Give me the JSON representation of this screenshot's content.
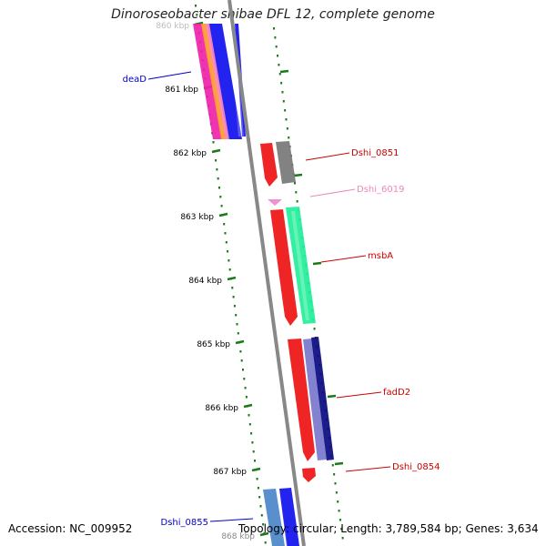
{
  "title": "Dinoroseobacter shibae DFL 12, complete genome",
  "accession": "Accession: NC_009952",
  "topology": "Topology: circular; Length: 3,789,584 bp; Genes: 3,634",
  "ticks": [
    {
      "label": "860 kbp",
      "color": "#bbbbbb"
    },
    {
      "label": "861 kbp",
      "color": "#000000"
    },
    {
      "label": "862 kbp",
      "color": "#000000"
    },
    {
      "label": "863 kbp",
      "color": "#000000"
    },
    {
      "label": "864 kbp",
      "color": "#000000"
    },
    {
      "label": "865 kbp",
      "color": "#000000"
    },
    {
      "label": "866 kbp",
      "color": "#000000"
    },
    {
      "label": "867 kbp",
      "color": "#000000"
    },
    {
      "label": "868 kbp",
      "color": "#888888"
    }
  ],
  "gene_labels": [
    {
      "name": "deaD",
      "color": "#0000cc"
    },
    {
      "name": "Dshi_0851",
      "color": "#cc0000"
    },
    {
      "name": "Dshi_6019",
      "color": "#ee88bb"
    },
    {
      "name": "msbA",
      "color": "#cc0000"
    },
    {
      "name": "fadD2",
      "color": "#cc0000"
    },
    {
      "name": "Dshi_0854",
      "color": "#cc0000"
    },
    {
      "name": "Dshi_0855",
      "color": "#0000cc"
    }
  ],
  "colors": {
    "backbone": "#888888",
    "tick": "#1a7a1a",
    "red": "#ee1111",
    "blue": "#1010ee",
    "green": "#22ee99",
    "grey": "#777777",
    "navy": "#0a0a80",
    "purple": "#7777cc",
    "steel": "#4a86c8",
    "pink": "#ee88cc",
    "orange": "#ff9933",
    "magenta": "#ee22aa"
  }
}
